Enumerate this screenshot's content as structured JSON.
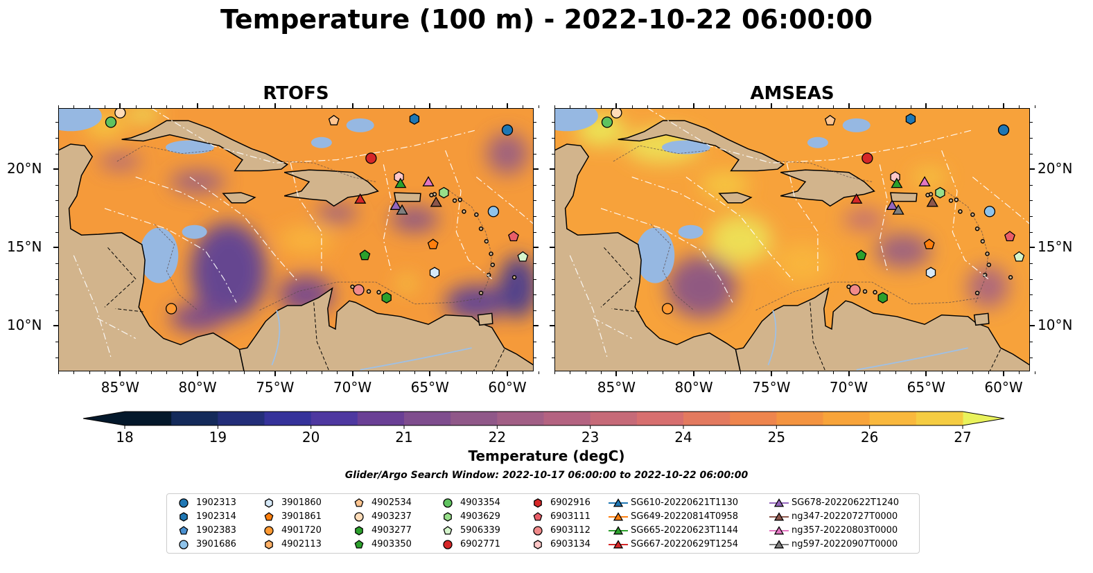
{
  "title": "Temperature (100 m) - 2022-10-22 06:00:00",
  "panels": [
    {
      "id": "rtofs",
      "title": "RTOFS",
      "dominant": "#f59a3a",
      "cold": "#6b3f8f",
      "land": "#d2b48c",
      "ocean": "#96b8e2"
    },
    {
      "id": "amseas",
      "title": "AMSEAS",
      "dominant": "#f7a23b",
      "cold": "#8a4f8a",
      "land": "#d2b48c",
      "ocean": "#96b8e2"
    }
  ],
  "axes": {
    "lon_ticks": [
      "85°W",
      "80°W",
      "75°W",
      "70°W",
      "65°W",
      "60°W"
    ],
    "lat_ticks": [
      "20°N",
      "15°N",
      "10°N"
    ],
    "lon_range": [
      -89,
      -58.3
    ],
    "lat_range": [
      7.1,
      23.9
    ]
  },
  "colorbar": {
    "label": "Temperature (degC)",
    "ticks": [
      "18",
      "19",
      "20",
      "21",
      "22",
      "23",
      "24",
      "25",
      "26",
      "27"
    ],
    "colors": [
      "#04182b",
      "#142a5a",
      "#232e79",
      "#35329a",
      "#4e38a0",
      "#6a3f95",
      "#7f4d8e",
      "#905889",
      "#a25f86",
      "#b46381",
      "#c66a78",
      "#d76f6f",
      "#e37a5f",
      "#ee854d",
      "#f49440",
      "#f8a43a",
      "#f9b83d",
      "#f5cc42",
      "#ece85a"
    ],
    "under_color": "#04182b",
    "over_color": "#e9f25c"
  },
  "search_window": "Glider/Argo Search Window: 2022-10-17 06:00:00 to 2022-10-22 06:00:00",
  "legend": [
    {
      "label": "1902313",
      "marker": "circle",
      "color": "#1f77b4"
    },
    {
      "label": "1902314",
      "marker": "hexagon",
      "color": "#1f77b4"
    },
    {
      "label": "1902383",
      "marker": "pentagon",
      "color": "#4a90d0"
    },
    {
      "label": "3901686",
      "marker": "circle",
      "color": "#8fc3ea"
    },
    {
      "label": "3901860",
      "marker": "hexagon",
      "color": "#d6e9f8"
    },
    {
      "label": "3901861",
      "marker": "pentagon",
      "color": "#ff7f0e"
    },
    {
      "label": "4901720",
      "marker": "circle",
      "color": "#ff9a33"
    },
    {
      "label": "4902113",
      "marker": "hexagon",
      "color": "#ffb066"
    },
    {
      "label": "4902534",
      "marker": "pentagon",
      "color": "#ffc590"
    },
    {
      "label": "4903237",
      "marker": "circle",
      "color": "#ffdcb8"
    },
    {
      "label": "4903277",
      "marker": "hexagon",
      "color": "#2ca02c"
    },
    {
      "label": "4903350",
      "marker": "pentagon",
      "color": "#2ca02c"
    },
    {
      "label": "4903354",
      "marker": "circle",
      "color": "#5fc35f"
    },
    {
      "label": "4903629",
      "marker": "hexagon",
      "color": "#98df8a"
    },
    {
      "label": "5906339",
      "marker": "pentagon",
      "color": "#d5f5cc"
    },
    {
      "label": "6902771",
      "marker": "circle",
      "color": "#d62728"
    },
    {
      "label": "6902916",
      "marker": "hexagon",
      "color": "#d62728"
    },
    {
      "label": "6903111",
      "marker": "pentagon",
      "color": "#e95e68"
    },
    {
      "label": "6903112",
      "marker": "circle",
      "color": "#f08a8a"
    },
    {
      "label": "6903134",
      "marker": "hexagon",
      "color": "#ffc7c7"
    },
    {
      "label": "SG610-20220621T1130",
      "marker": "triangle",
      "color": "#1f77b4"
    },
    {
      "label": "SG649-20220814T0958",
      "marker": "triangle",
      "color": "#ff7f0e"
    },
    {
      "label": "SG665-20220623T1144",
      "marker": "triangle",
      "color": "#2ca02c"
    },
    {
      "label": "SG667-20220629T1254",
      "marker": "triangle",
      "color": "#d62728"
    },
    {
      "label": "SG678-20220622T1240",
      "marker": "triangle",
      "color": "#9467bd"
    },
    {
      "label": "ng347-20220727T0000",
      "marker": "triangle",
      "color": "#8c564b"
    },
    {
      "label": "ng357-20220803T0000",
      "marker": "triangle",
      "color": "#e377c2"
    },
    {
      "label": "ng597-20220907T0000",
      "marker": "triangle",
      "color": "#7f7f7f"
    }
  ],
  "positions": [
    {
      "id": "1902313",
      "lon": -60.0,
      "lat": 22.5
    },
    {
      "id": "1902314",
      "lon": -66.0,
      "lat": 23.2
    },
    {
      "id": "4903354",
      "lon": -85.6,
      "lat": 23.0
    },
    {
      "id": "4903237",
      "lon": -85.0,
      "lat": 23.6
    },
    {
      "id": "4902534",
      "lon": -71.2,
      "lat": 23.1
    },
    {
      "id": "6902771",
      "lon": -68.8,
      "lat": 20.7
    },
    {
      "id": "6903134",
      "lon": -67.0,
      "lat": 19.5
    },
    {
      "id": "SG665-20220623T1144",
      "lon": -66.9,
      "lat": 19.1
    },
    {
      "id": "ng357-20220803T0000",
      "lon": -65.1,
      "lat": 19.2
    },
    {
      "id": "4903629",
      "lon": -64.1,
      "lat": 18.5
    },
    {
      "id": "ng347-20220727T0000",
      "lon": -64.6,
      "lat": 17.9
    },
    {
      "id": "SG667-20220629T1254",
      "lon": -69.5,
      "lat": 18.1
    },
    {
      "id": "SG678-20220622T1240",
      "lon": -67.2,
      "lat": 17.7
    },
    {
      "id": "ng597-20220907T0000",
      "lon": -66.8,
      "lat": 17.4
    },
    {
      "id": "3901686",
      "lon": -60.9,
      "lat": 17.3
    },
    {
      "id": "6903111",
      "lon": -59.6,
      "lat": 15.7
    },
    {
      "id": "3901861",
      "lon": -64.8,
      "lat": 15.2
    },
    {
      "id": "5906339",
      "lon": -59.0,
      "lat": 14.4
    },
    {
      "id": "4903350",
      "lon": -69.2,
      "lat": 14.5
    },
    {
      "id": "3901860",
      "lon": -64.7,
      "lat": 13.4
    },
    {
      "id": "6903112",
      "lon": -69.6,
      "lat": 12.3
    },
    {
      "id": "4903277",
      "lon": -67.8,
      "lat": 11.8
    },
    {
      "id": "4901720",
      "lon": -81.7,
      "lat": 11.1
    }
  ]
}
